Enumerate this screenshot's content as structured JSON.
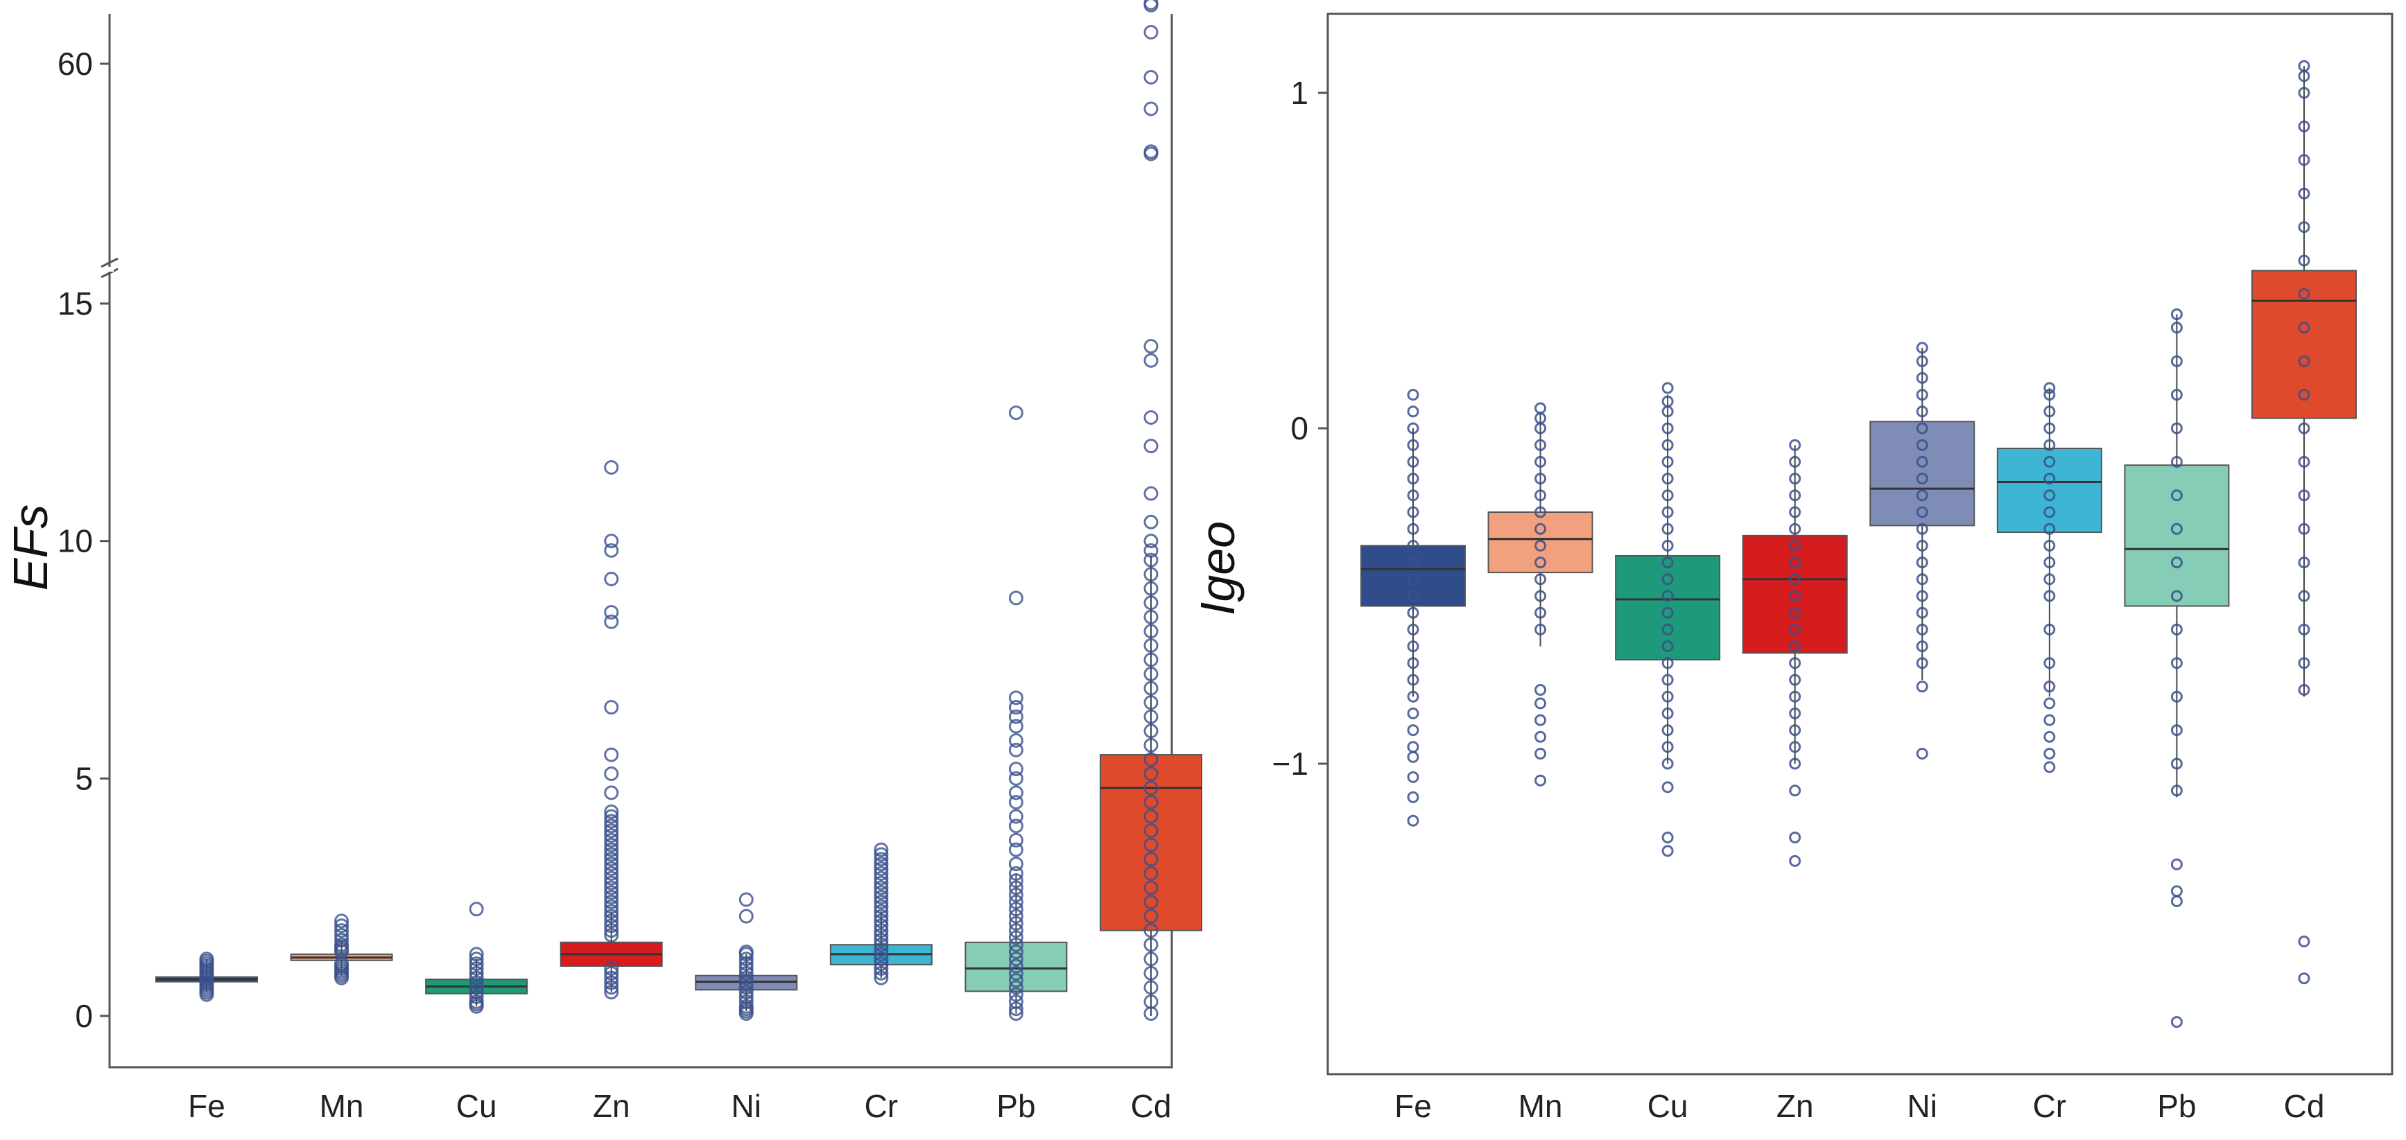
{
  "colors": {
    "Fe": "#2f4d8a",
    "Mn": "#f1a17e",
    "Cu": "#1e9a7b",
    "Zn": "#d61c1c",
    "Ni": "#7f8db6",
    "Cr": "#3eb5d2",
    "Pb": "#86cdb7",
    "Cd": "#e04a2c",
    "outlier": "#3a508c",
    "frame": "#555555",
    "median": "#333333"
  },
  "chart_data": [
    {
      "type": "box",
      "ylabel": "EFs",
      "xlabel": "",
      "categories": [
        "Fe",
        "Mn",
        "Cu",
        "Zn",
        "Ni",
        "Cr",
        "Pb",
        "Cd"
      ],
      "yticks_lower": [
        "0",
        "5",
        "10",
        "15"
      ],
      "ytick_values_lower": [
        0,
        5,
        10,
        15
      ],
      "yticks_upper": [
        "60"
      ],
      "ytick_values_upper": [
        60
      ],
      "axis_break": {
        "lower_range": [
          -1,
          15.5
        ],
        "upper_range": [
          52,
          62
        ],
        "break_at": 15.5
      },
      "boxes": [
        {
          "name": "Fe",
          "q1": 0.72,
          "median": 0.77,
          "q3": 0.82,
          "whisker_low": 0.5,
          "whisker_high": 1.2
        },
        {
          "name": "Mn",
          "q1": 1.17,
          "median": 1.23,
          "q3": 1.3,
          "whisker_low": 0.85,
          "whisker_high": 1.6
        },
        {
          "name": "Cu",
          "q1": 0.47,
          "median": 0.62,
          "q3": 0.77,
          "whisker_low": 0.2,
          "whisker_high": 1.2
        },
        {
          "name": "Zn",
          "q1": 1.05,
          "median": 1.3,
          "q3": 1.55,
          "whisker_low": 0.5,
          "whisker_high": 2.2
        },
        {
          "name": "Ni",
          "q1": 0.55,
          "median": 0.72,
          "q3": 0.85,
          "whisker_low": 0.1,
          "whisker_high": 1.3
        },
        {
          "name": "Cr",
          "q1": 1.08,
          "median": 1.3,
          "q3": 1.5,
          "whisker_low": 0.8,
          "whisker_high": 2.2
        },
        {
          "name": "Pb",
          "q1": 0.52,
          "median": 1.0,
          "q3": 1.55,
          "whisker_low": 0.05,
          "whisker_high": 3.0
        },
        {
          "name": "Cd",
          "q1": 1.8,
          "median": 4.8,
          "q3": 5.5,
          "whisker_low": 0.0,
          "whisker_high": 9.7
        }
      ],
      "outliers": [
        {
          "name": "Fe",
          "values": [
            0.45,
            0.5,
            0.55,
            0.6,
            0.65,
            0.7,
            0.75,
            0.8,
            0.85,
            0.9,
            0.95,
            1.0,
            1.05,
            1.1,
            1.15,
            1.2
          ]
        },
        {
          "name": "Mn",
          "values": [
            0.8,
            0.85,
            0.9,
            0.95,
            1.0,
            1.05,
            1.1,
            1.35,
            1.4,
            1.45,
            1.5,
            1.6,
            1.7,
            1.8,
            1.9,
            2.0
          ]
        },
        {
          "name": "Cu",
          "values": [
            0.2,
            0.25,
            0.3,
            0.4,
            0.5,
            0.6,
            0.7,
            0.8,
            0.9,
            1.0,
            1.1,
            1.2,
            1.3,
            2.25
          ]
        },
        {
          "name": "Zn",
          "values": [
            0.5,
            0.6,
            0.7,
            0.8,
            0.9,
            1.0,
            1.7,
            1.8,
            1.9,
            2.0,
            2.1,
            2.2,
            2.3,
            2.4,
            2.5,
            2.6,
            2.7,
            2.8,
            2.9,
            3.0,
            3.1,
            3.2,
            3.3,
            3.4,
            3.5,
            3.6,
            3.7,
            3.8,
            3.9,
            4.0,
            4.1,
            4.2,
            4.3,
            4.7,
            5.1,
            5.5,
            6.5,
            8.3,
            8.5,
            9.2,
            9.8,
            10.0,
            11.55
          ]
        },
        {
          "name": "Ni",
          "values": [
            0.05,
            0.1,
            0.15,
            0.2,
            0.3,
            0.4,
            0.5,
            0.6,
            0.7,
            0.8,
            0.9,
            1.0,
            1.1,
            1.2,
            1.3,
            1.35,
            2.1,
            2.45
          ]
        },
        {
          "name": "Cr",
          "values": [
            0.8,
            0.9,
            1.0,
            1.1,
            1.2,
            1.3,
            1.4,
            1.5,
            1.6,
            1.7,
            1.8,
            1.9,
            2.0,
            2.1,
            2.2,
            2.3,
            2.4,
            2.5,
            2.6,
            2.7,
            2.8,
            2.9,
            3.0,
            3.1,
            3.2,
            3.3,
            3.4,
            3.5
          ]
        },
        {
          "name": "Pb",
          "values": [
            0.05,
            0.15,
            0.3,
            0.45,
            0.6,
            0.75,
            0.9,
            1.05,
            1.2,
            1.35,
            1.5,
            1.65,
            1.8,
            1.95,
            2.1,
            2.25,
            2.4,
            2.55,
            2.7,
            2.85,
            3.0,
            3.2,
            3.5,
            3.7,
            4.0,
            4.2,
            4.5,
            4.7,
            5.0,
            5.2,
            5.6,
            5.8,
            6.1,
            6.3,
            6.5,
            6.7,
            8.8,
            12.7
          ]
        },
        {
          "name": "Cd",
          "values": [
            0.05,
            0.3,
            0.6,
            0.9,
            1.2,
            1.5,
            1.8,
            2.1,
            2.4,
            2.7,
            3.0,
            3.3,
            3.6,
            3.9,
            4.2,
            4.5,
            4.8,
            5.1,
            5.4,
            5.7,
            6.0,
            6.3,
            6.6,
            6.9,
            7.2,
            7.5,
            7.8,
            8.1,
            8.4,
            8.7,
            9.0,
            9.3,
            9.6,
            9.8,
            10.0,
            10.4,
            11.0,
            12.0,
            12.6,
            13.8,
            14.1,
            56.0,
            56.1,
            58.0,
            59.4,
            61.4,
            62.6,
            62.7
          ]
        }
      ]
    },
    {
      "type": "box",
      "ylabel": "Igeo",
      "xlabel": "",
      "categories": [
        "Fe",
        "Mn",
        "Cu",
        "Zn",
        "Ni",
        "Cr",
        "Pb",
        "Cd"
      ],
      "yticks": [
        "1",
        "0",
        "−1"
      ],
      "ytick_values": [
        1,
        0,
        -1
      ],
      "ylim": [
        -1.9,
        1.25
      ],
      "boxes": [
        {
          "name": "Fe",
          "q1": -0.53,
          "median": -0.42,
          "q3": -0.35,
          "whisker_low": -0.8,
          "whisker_high": 0.0
        },
        {
          "name": "Mn",
          "q1": -0.43,
          "median": -0.33,
          "q3": -0.25,
          "whisker_low": -0.65,
          "whisker_high": 0.05
        },
        {
          "name": "Cu",
          "q1": -0.69,
          "median": -0.51,
          "q3": -0.38,
          "whisker_low": -1.0,
          "whisker_high": 0.1
        },
        {
          "name": "Zn",
          "q1": -0.67,
          "median": -0.45,
          "q3": -0.32,
          "whisker_low": -1.0,
          "whisker_high": -0.05
        },
        {
          "name": "Ni",
          "q1": -0.29,
          "median": -0.18,
          "q3": 0.02,
          "whisker_low": -0.75,
          "whisker_high": 0.24
        },
        {
          "name": "Cr",
          "q1": -0.31,
          "median": -0.16,
          "q3": -0.06,
          "whisker_low": -0.8,
          "whisker_high": 0.12
        },
        {
          "name": "Pb",
          "q1": -0.53,
          "median": -0.36,
          "q3": -0.11,
          "whisker_low": -1.1,
          "whisker_high": 0.34
        },
        {
          "name": "Cd",
          "q1": 0.03,
          "median": 0.38,
          "q3": 0.47,
          "whisker_low": -0.8,
          "whisker_high": 1.08
        }
      ],
      "outliers": [
        {
          "name": "Fe",
          "values": [
            -1.17,
            -1.1,
            -1.04,
            -0.98,
            -0.95,
            -0.9,
            -0.85,
            -0.8,
            -0.75,
            -0.7,
            -0.65,
            -0.6,
            -0.55,
            -0.5,
            -0.45,
            -0.4,
            -0.35,
            -0.3,
            -0.25,
            -0.2,
            -0.15,
            -0.1,
            -0.05,
            0.0,
            0.05,
            0.1
          ]
        },
        {
          "name": "Mn",
          "values": [
            -1.05,
            -0.97,
            -0.92,
            -0.87,
            -0.82,
            -0.78,
            -0.6,
            -0.55,
            -0.5,
            -0.45,
            -0.4,
            -0.35,
            -0.3,
            -0.25,
            -0.2,
            -0.15,
            -0.1,
            -0.05,
            0.0,
            0.03,
            0.06
          ]
        },
        {
          "name": "Cu",
          "values": [
            -1.26,
            -1.22,
            -1.07,
            -1.0,
            -0.95,
            -0.9,
            -0.85,
            -0.8,
            -0.75,
            -0.7,
            -0.65,
            -0.6,
            -0.55,
            -0.5,
            -0.45,
            -0.4,
            -0.35,
            -0.3,
            -0.25,
            -0.2,
            -0.15,
            -0.1,
            -0.05,
            0.0,
            0.05,
            0.08,
            0.12
          ]
        },
        {
          "name": "Zn",
          "values": [
            -1.29,
            -1.22,
            -1.08,
            -1.0,
            -0.95,
            -0.9,
            -0.85,
            -0.8,
            -0.75,
            -0.7,
            -0.65,
            -0.6,
            -0.55,
            -0.5,
            -0.45,
            -0.4,
            -0.35,
            -0.3,
            -0.25,
            -0.2,
            -0.15,
            -0.1,
            -0.05
          ]
        },
        {
          "name": "Ni",
          "values": [
            -0.97,
            -0.77,
            -0.7,
            -0.65,
            -0.6,
            -0.55,
            -0.5,
            -0.45,
            -0.4,
            -0.35,
            -0.3,
            -0.25,
            -0.2,
            -0.15,
            -0.1,
            -0.05,
            0.0,
            0.05,
            0.1,
            0.15,
            0.2,
            0.24
          ]
        },
        {
          "name": "Cr",
          "values": [
            -1.01,
            -0.97,
            -0.92,
            -0.87,
            -0.82,
            -0.77,
            -0.7,
            -0.6,
            -0.5,
            -0.45,
            -0.4,
            -0.35,
            -0.3,
            -0.25,
            -0.2,
            -0.15,
            -0.1,
            -0.05,
            0.0,
            0.05,
            0.1,
            0.12
          ]
        },
        {
          "name": "Pb",
          "values": [
            -1.77,
            -1.41,
            -1.38,
            -1.3,
            -1.08,
            -1.0,
            -0.9,
            -0.8,
            -0.7,
            -0.6,
            -0.5,
            -0.4,
            -0.3,
            -0.2,
            -0.1,
            0.0,
            0.1,
            0.2,
            0.3,
            0.34
          ]
        },
        {
          "name": "Cd",
          "values": [
            -1.64,
            -1.53,
            -0.78,
            -0.7,
            -0.6,
            -0.5,
            -0.4,
            -0.3,
            -0.2,
            -0.1,
            0.0,
            0.1,
            0.2,
            0.3,
            0.4,
            0.5,
            0.6,
            0.7,
            0.8,
            0.9,
            1.0,
            1.05,
            1.08
          ]
        }
      ]
    }
  ]
}
